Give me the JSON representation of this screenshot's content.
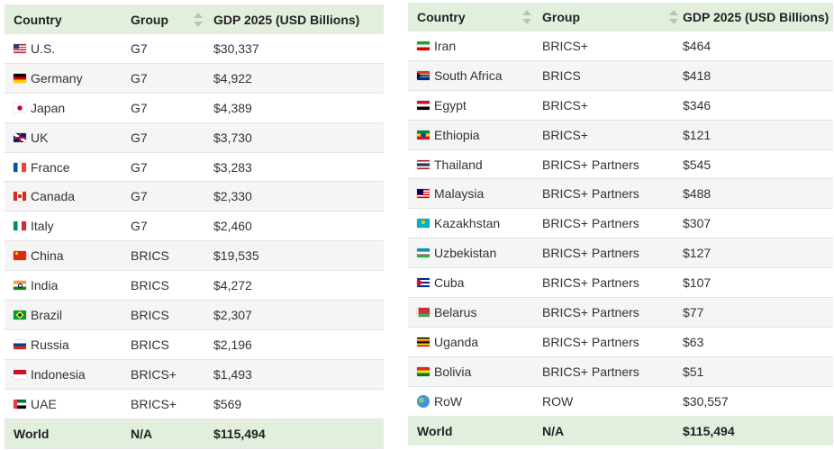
{
  "tables": [
    {
      "headers": [
        "Country",
        "Group",
        "GDP 2025 (USD Billions)"
      ],
      "rows": [
        {
          "flag": "us-flag-icon",
          "country": "U.S.",
          "group": "G7",
          "gdp": "$30,337"
        },
        {
          "flag": "de-flag-icon",
          "country": "Germany",
          "group": "G7",
          "gdp": "$4,922"
        },
        {
          "flag": "jp-flag-icon",
          "country": "Japan",
          "group": "G7",
          "gdp": "$4,389"
        },
        {
          "flag": "uk-flag-icon",
          "country": "UK",
          "group": "G7",
          "gdp": "$3,730"
        },
        {
          "flag": "fr-flag-icon",
          "country": "France",
          "group": "G7",
          "gdp": "$3,283"
        },
        {
          "flag": "ca-flag-icon",
          "country": "Canada",
          "group": "G7",
          "gdp": "$2,330"
        },
        {
          "flag": "it-flag-icon",
          "country": "Italy",
          "group": "G7",
          "gdp": "$2,460"
        },
        {
          "flag": "cn-flag-icon",
          "country": "China",
          "group": "BRICS",
          "gdp": "$19,535"
        },
        {
          "flag": "in-flag-icon",
          "country": "India",
          "group": "BRICS",
          "gdp": "$4,272"
        },
        {
          "flag": "br-flag-icon",
          "country": "Brazil",
          "group": "BRICS",
          "gdp": "$2,307"
        },
        {
          "flag": "ru-flag-icon",
          "country": "Russia",
          "group": "BRICS",
          "gdp": "$2,196"
        },
        {
          "flag": "id-flag-icon",
          "country": "Indonesia",
          "group": "BRICS+",
          "gdp": "$1,493"
        },
        {
          "flag": "ae-flag-icon",
          "country": "UAE",
          "group": "BRICS+",
          "gdp": "$569"
        }
      ],
      "footer": {
        "country": "World",
        "group": "N/A",
        "gdp": "$115,494"
      }
    },
    {
      "headers": [
        "Country",
        "Group",
        "GDP 2025 (USD Billions)"
      ],
      "rows": [
        {
          "flag": "ir-flag-icon",
          "country": "Iran",
          "group": "BRICS+",
          "gdp": "$464"
        },
        {
          "flag": "za-flag-icon",
          "country": "South Africa",
          "group": "BRICS",
          "gdp": "$418"
        },
        {
          "flag": "eg-flag-icon",
          "country": "Egypt",
          "group": "BRICS+",
          "gdp": "$346"
        },
        {
          "flag": "et-flag-icon",
          "country": "Ethiopia",
          "group": "BRICS+",
          "gdp": "$121"
        },
        {
          "flag": "th-flag-icon",
          "country": "Thailand",
          "group": "BRICS+ Partners",
          "gdp": "$545"
        },
        {
          "flag": "my-flag-icon",
          "country": "Malaysia",
          "group": "BRICS+ Partners",
          "gdp": "$488"
        },
        {
          "flag": "kz-flag-icon",
          "country": "Kazakhstan",
          "group": "BRICS+ Partners",
          "gdp": "$307"
        },
        {
          "flag": "uz-flag-icon",
          "country": "Uzbekistan",
          "group": "BRICS+ Partners",
          "gdp": "$127"
        },
        {
          "flag": "cu-flag-icon",
          "country": "Cuba",
          "group": "BRICS+ Partners",
          "gdp": "$107"
        },
        {
          "flag": "by-flag-icon",
          "country": "Belarus",
          "group": "BRICS+ Partners",
          "gdp": "$77"
        },
        {
          "flag": "ug-flag-icon",
          "country": "Uganda",
          "group": "BRICS+ Partners",
          "gdp": "$63"
        },
        {
          "flag": "bo-flag-icon",
          "country": "Bolivia",
          "group": "BRICS+ Partners",
          "gdp": "$51"
        },
        {
          "flag": "globe-icon",
          "country": "RoW",
          "group": "ROW",
          "gdp": "$30,557"
        }
      ],
      "footer": {
        "country": "World",
        "group": "N/A",
        "gdp": "$115,494"
      }
    }
  ]
}
